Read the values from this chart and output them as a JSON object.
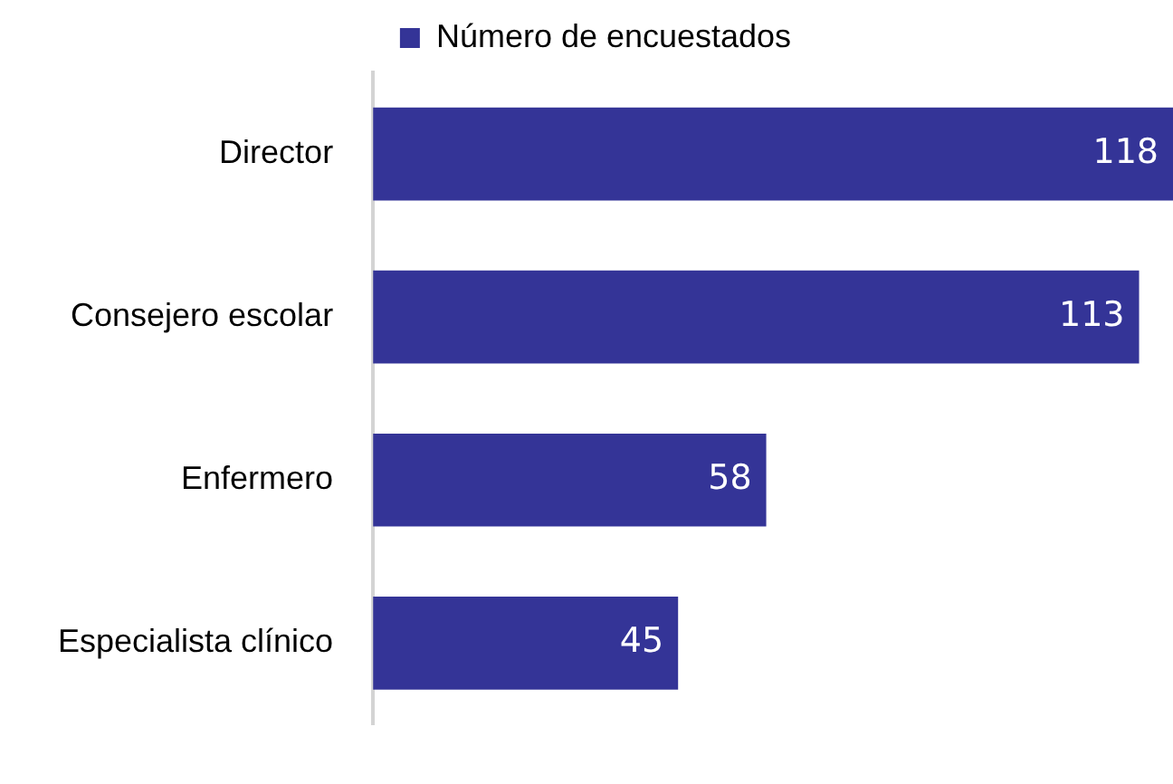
{
  "chart_data": {
    "type": "bar",
    "orientation": "horizontal",
    "categories": [
      "Director",
      "Consejero escolar",
      "Enfermero",
      "Especialista clínico"
    ],
    "series": [
      {
        "name": "Número de encuestados",
        "color": "#343497",
        "values": [
          118,
          113,
          58,
          45
        ]
      }
    ],
    "data_labels": true,
    "legend": "top",
    "tick_labels": "y"
  }
}
